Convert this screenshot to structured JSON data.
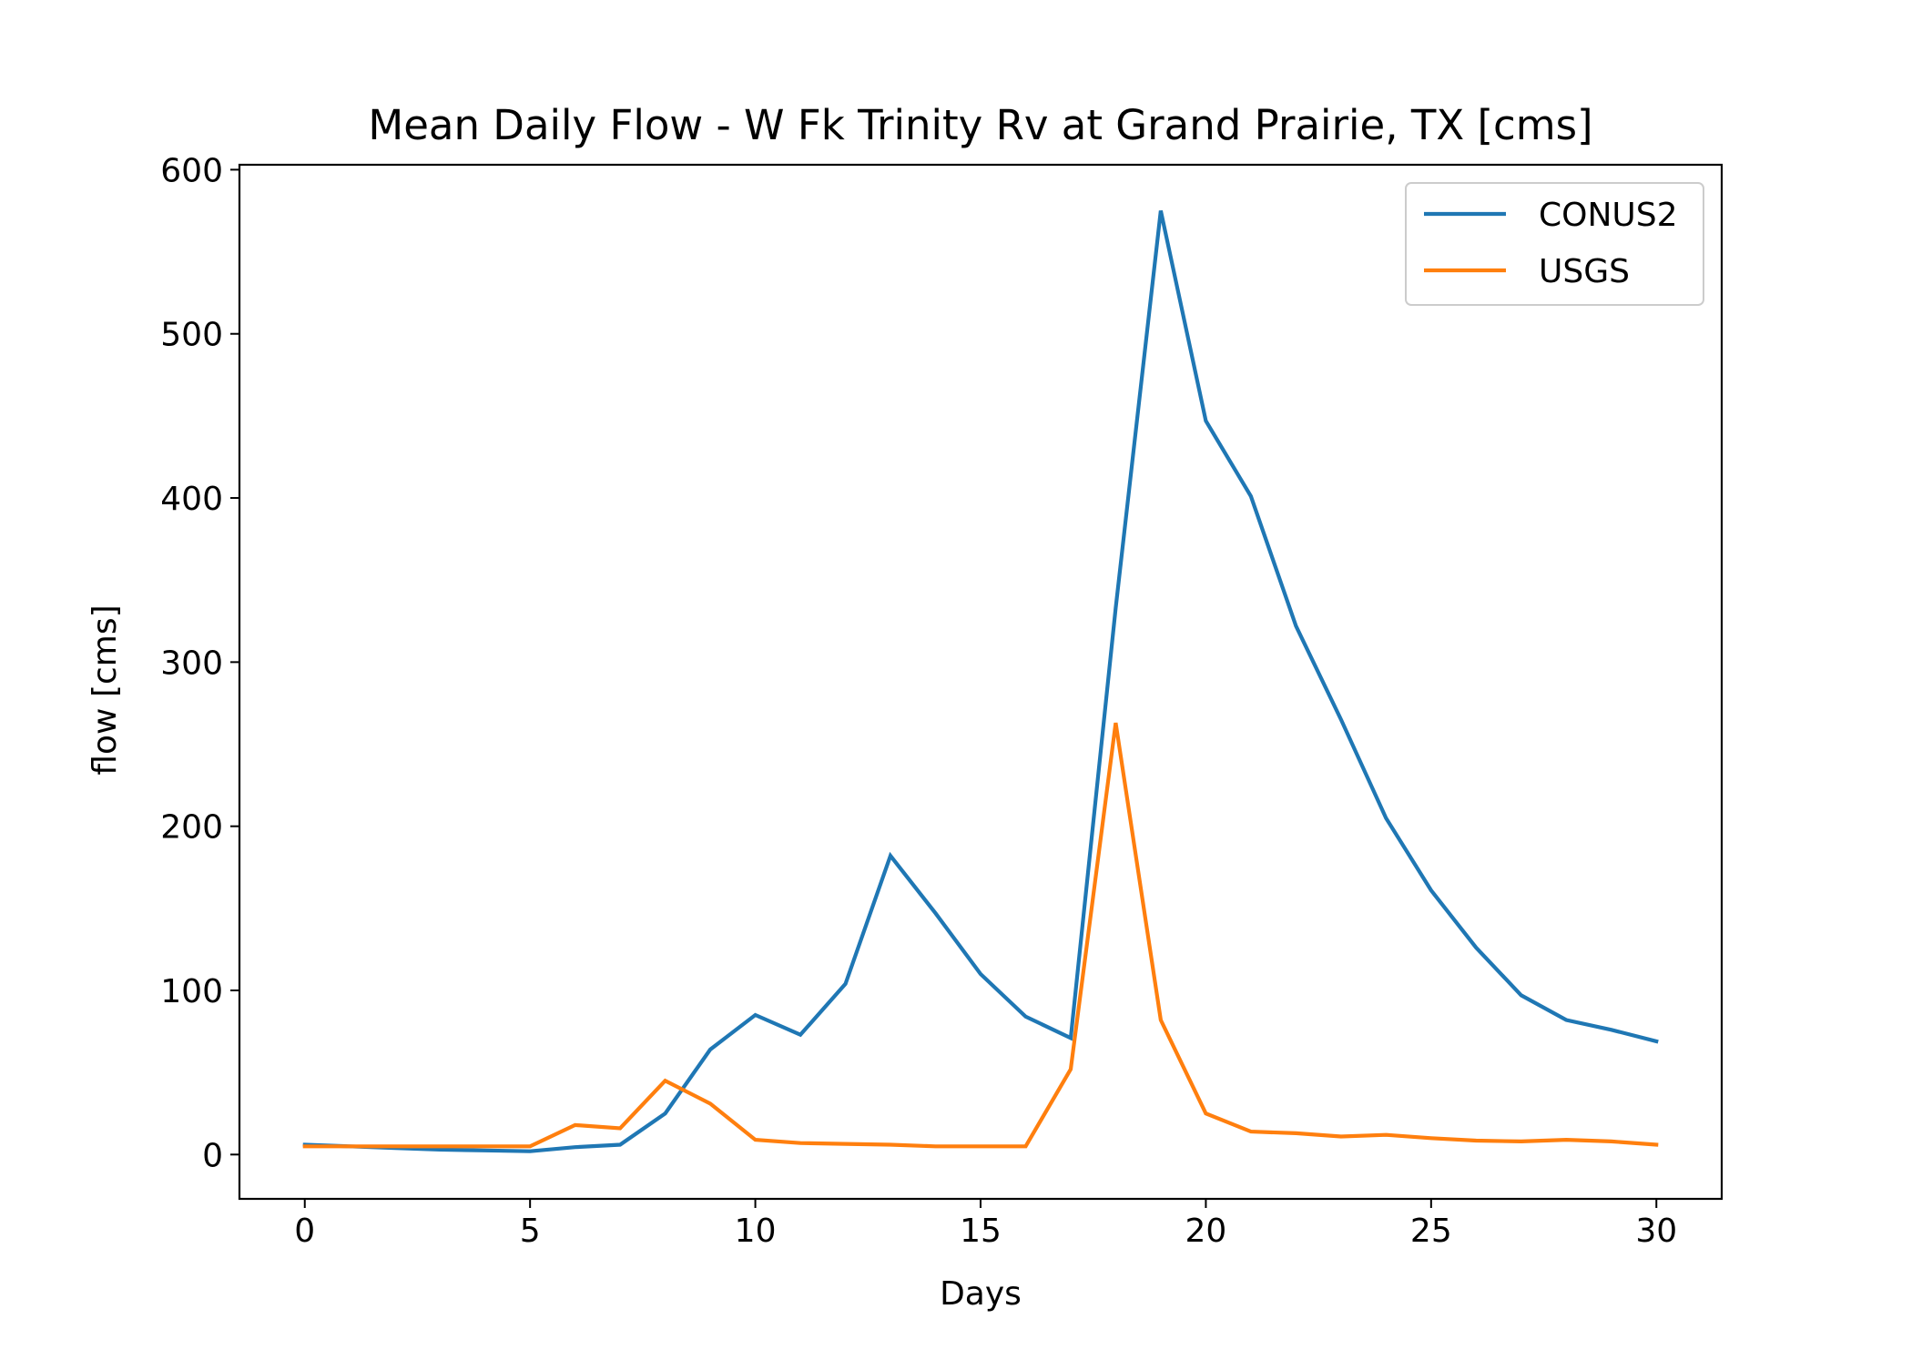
{
  "chart_data": {
    "type": "line",
    "title": "Mean Daily Flow - W Fk Trinity Rv at Grand Prairie, TX [cms]",
    "xlabel": "Days",
    "ylabel": "flow [cms]",
    "xlim": [
      -1.45,
      31.45
    ],
    "ylim": [
      -27,
      603
    ],
    "xticks": [
      0,
      5,
      10,
      15,
      20,
      25,
      30
    ],
    "yticks": [
      0,
      100,
      200,
      300,
      400,
      500,
      600
    ],
    "grid": false,
    "legend_position": "upper right",
    "x": [
      0,
      1,
      2,
      3,
      4,
      5,
      6,
      7,
      8,
      9,
      10,
      11,
      12,
      13,
      14,
      15,
      16,
      17,
      18,
      19,
      20,
      21,
      22,
      23,
      24,
      25,
      26,
      27,
      28,
      29,
      30
    ],
    "series": [
      {
        "name": "CONUS2",
        "color": "#1f77b4",
        "values": [
          6,
          5,
          4,
          3,
          2.5,
          2,
          4.5,
          6,
          25,
          64,
          85,
          73,
          104,
          182,
          147,
          110,
          84,
          71,
          333,
          575,
          447,
          401,
          322,
          265,
          205,
          161,
          126,
          97,
          82,
          76,
          69
        ]
      },
      {
        "name": "USGS",
        "color": "#ff7f0e",
        "values": [
          5,
          5,
          5,
          5,
          5,
          5,
          18,
          16,
          45,
          31,
          9,
          7,
          6.5,
          6,
          5,
          5,
          5,
          52,
          263,
          82,
          25,
          14,
          13,
          11,
          12,
          10,
          8.5,
          8,
          9,
          8,
          6
        ]
      }
    ]
  }
}
